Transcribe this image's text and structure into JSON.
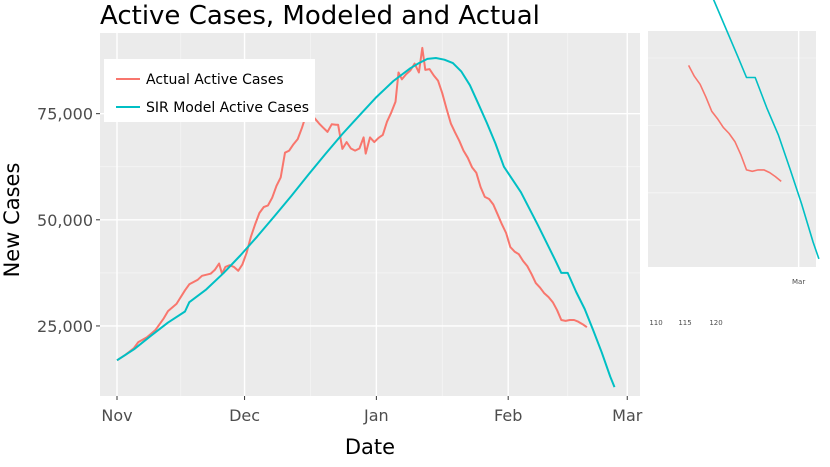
{
  "chart_data": {
    "type": "line",
    "title": "Active Cases, Modeled and Actual",
    "xlabel": "Date",
    "ylabel": "New Cases",
    "x_ticks": [
      {
        "label": "Nov",
        "day": 0
      },
      {
        "label": "Dec",
        "day": 30
      },
      {
        "label": "Jan",
        "day": 61
      },
      {
        "label": "Feb",
        "day": 92
      },
      {
        "label": "Mar",
        "day": 120
      }
    ],
    "y_ticks": [
      {
        "label": "25,000",
        "value": 25000
      },
      {
        "label": "50,000",
        "value": 50000
      },
      {
        "label": "75,000",
        "value": 75000
      }
    ],
    "xlim": [
      -4,
      123
    ],
    "ylim": [
      8500,
      94000
    ],
    "grid": true,
    "legend_position": "top-left",
    "series": [
      {
        "name": "Actual Active Cases",
        "color": "#f8766d",
        "points": [
          [
            0,
            16900
          ],
          [
            2,
            18200
          ],
          [
            4,
            19800
          ],
          [
            5,
            21200
          ],
          [
            7,
            22300
          ],
          [
            9,
            24000
          ],
          [
            11,
            26800
          ],
          [
            12,
            28500
          ],
          [
            14,
            30200
          ],
          [
            16,
            33400
          ],
          [
            17,
            34800
          ],
          [
            19,
            35900
          ],
          [
            20,
            36800
          ],
          [
            22,
            37300
          ],
          [
            23,
            38200
          ],
          [
            24,
            39700
          ],
          [
            24.7,
            37300
          ],
          [
            25.5,
            38900
          ],
          [
            26.5,
            39300
          ],
          [
            27.5,
            38900
          ],
          [
            28.5,
            38000
          ],
          [
            29.5,
            39500
          ],
          [
            30.5,
            42300
          ],
          [
            31.5,
            46000
          ],
          [
            32.5,
            49000
          ],
          [
            33.5,
            51600
          ],
          [
            34.5,
            53000
          ],
          [
            35.5,
            53400
          ],
          [
            36.5,
            55200
          ],
          [
            37.5,
            58000
          ],
          [
            38.5,
            60000
          ],
          [
            39.5,
            65800
          ],
          [
            40.5,
            66300
          ],
          [
            41.5,
            67800
          ],
          [
            42.5,
            69000
          ],
          [
            43.5,
            71700
          ],
          [
            44.5,
            74800
          ],
          [
            45.5,
            74900
          ],
          [
            46.5,
            73900
          ],
          [
            47.5,
            72700
          ],
          [
            48.5,
            71700
          ],
          [
            49.5,
            70700
          ],
          [
            50.5,
            72500
          ],
          [
            51.5,
            72400
          ],
          [
            52,
            72400
          ],
          [
            53,
            66700
          ],
          [
            54,
            68300
          ],
          [
            55,
            66800
          ],
          [
            56,
            66300
          ],
          [
            57,
            66800
          ],
          [
            58,
            69400
          ],
          [
            58.5,
            65600
          ],
          [
            59.5,
            69400
          ],
          [
            60.5,
            68300
          ],
          [
            61.5,
            69300
          ],
          [
            62.5,
            70000
          ],
          [
            63.5,
            73100
          ],
          [
            64.5,
            75300
          ],
          [
            65.5,
            77800
          ],
          [
            66.2,
            84700
          ],
          [
            67,
            83100
          ],
          [
            68,
            84300
          ],
          [
            69,
            85200
          ],
          [
            70,
            86800
          ],
          [
            71,
            84700
          ],
          [
            71.8,
            90500
          ],
          [
            72.5,
            85300
          ],
          [
            73.5,
            85500
          ],
          [
            74.5,
            84000
          ],
          [
            75.5,
            82800
          ],
          [
            76.5,
            79800
          ],
          [
            77.5,
            76200
          ],
          [
            78.5,
            72700
          ],
          [
            79.5,
            70600
          ],
          [
            80.5,
            68600
          ],
          [
            81.5,
            66300
          ],
          [
            82.5,
            64600
          ],
          [
            83.5,
            62400
          ],
          [
            84.5,
            61100
          ],
          [
            85.5,
            57700
          ],
          [
            86.5,
            55400
          ],
          [
            87.5,
            54900
          ],
          [
            88.5,
            53600
          ],
          [
            89.5,
            51300
          ],
          [
            90.5,
            49000
          ],
          [
            91.5,
            46900
          ],
          [
            92.5,
            43600
          ],
          [
            93.5,
            42500
          ],
          [
            94.5,
            41900
          ],
          [
            95.5,
            40300
          ],
          [
            96.5,
            39100
          ],
          [
            97.5,
            37200
          ],
          [
            98.5,
            35100
          ],
          [
            99.5,
            34000
          ],
          [
            100.5,
            32700
          ],
          [
            101.5,
            31800
          ],
          [
            102.5,
            30600
          ],
          [
            103.5,
            28700
          ],
          [
            104.5,
            26400
          ],
          [
            105.5,
            26200
          ],
          [
            106.5,
            26400
          ],
          [
            107.5,
            26400
          ],
          [
            108.5,
            26000
          ],
          [
            109.5,
            25400
          ],
          [
            110.5,
            24700
          ]
        ]
      },
      {
        "name": "SIR Model Active Cases",
        "color": "#00bfc4",
        "points": [
          [
            0,
            16900
          ],
          [
            4,
            19500
          ],
          [
            8,
            22700
          ],
          [
            12,
            25800
          ],
          [
            16,
            28400
          ],
          [
            17,
            30600
          ],
          [
            21,
            33600
          ],
          [
            25,
            37400
          ],
          [
            29,
            41600
          ],
          [
            33,
            46100
          ],
          [
            37,
            50800
          ],
          [
            41,
            55600
          ],
          [
            45,
            60600
          ],
          [
            49,
            65500
          ],
          [
            53,
            70200
          ],
          [
            57,
            74600
          ],
          [
            61,
            78900
          ],
          [
            65,
            82700
          ],
          [
            69,
            85700
          ],
          [
            71,
            86900
          ],
          [
            73,
            87900
          ],
          [
            75,
            88100
          ],
          [
            77,
            87700
          ],
          [
            79,
            86900
          ],
          [
            81,
            84900
          ],
          [
            83,
            81700
          ],
          [
            85,
            77300
          ],
          [
            87,
            72800
          ],
          [
            89,
            68000
          ],
          [
            91,
            62500
          ],
          [
            95,
            56500
          ],
          [
            99,
            48700
          ],
          [
            103,
            40600
          ],
          [
            104.5,
            37500
          ],
          [
            106,
            37500
          ],
          [
            108,
            33000
          ],
          [
            110,
            29000
          ],
          [
            112,
            24000
          ],
          [
            114,
            18800
          ],
          [
            116,
            13100
          ],
          [
            117,
            10600
          ]
        ]
      }
    ],
    "inset": {
      "tick_labels": [
        "110",
        "115",
        "120"
      ],
      "date_label": "Mar"
    }
  }
}
